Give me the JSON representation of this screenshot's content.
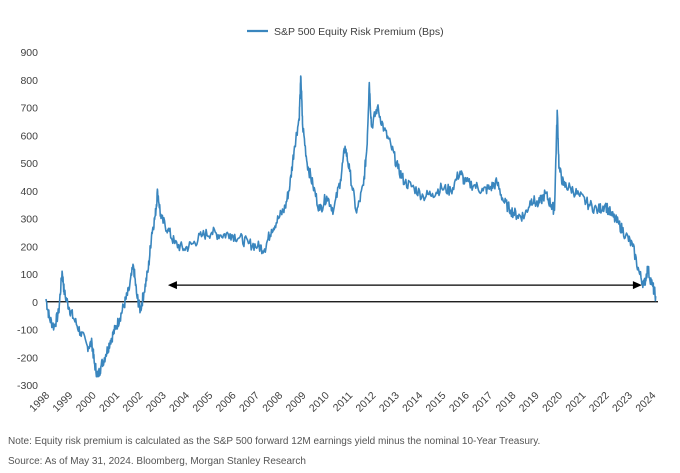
{
  "chart_data": {
    "type": "line",
    "title": "",
    "legend": [
      {
        "name": "S&P 500 Equity Risk Premium (Bps)",
        "color": "#3a86be"
      }
    ],
    "legend_position": "top-center",
    "xlabel": "",
    "ylabel": "",
    "ylim": [
      -300,
      900
    ],
    "yticks": [
      900,
      800,
      700,
      600,
      500,
      400,
      300,
      200,
      100,
      0,
      -100,
      -200,
      -300
    ],
    "xlim": [
      1998.0,
      2024.6
    ],
    "xticks": [
      "1998",
      "1999",
      "2000",
      "2001",
      "2002",
      "2003",
      "2004",
      "2005",
      "2006",
      "2007",
      "2008",
      "2009",
      "2010",
      "2011",
      "2012",
      "2013",
      "2014",
      "2015",
      "2016",
      "2017",
      "2018",
      "2019",
      "2020",
      "2021",
      "2022",
      "2023",
      "2024"
    ],
    "reference_line": {
      "y": 0,
      "label": ""
    },
    "annotation_arrow": {
      "x_start": 2003.3,
      "x_end": 2023.9,
      "y": 60,
      "style": "double-headed"
    },
    "series": [
      {
        "name": "S&P 500 Equity Risk Premium (Bps)",
        "color": "#3a86be",
        "points": [
          [
            1998.0,
            10
          ],
          [
            1998.15,
            -60
          ],
          [
            1998.35,
            -90
          ],
          [
            1998.55,
            -40
          ],
          [
            1998.7,
            110
          ],
          [
            1998.8,
            30
          ],
          [
            1999.0,
            -20
          ],
          [
            1999.2,
            -60
          ],
          [
            1999.5,
            -110
          ],
          [
            1999.8,
            -160
          ],
          [
            2000.0,
            -150
          ],
          [
            2000.1,
            -220
          ],
          [
            2000.25,
            -270
          ],
          [
            2000.4,
            -230
          ],
          [
            2000.6,
            -190
          ],
          [
            2000.8,
            -140
          ],
          [
            2001.0,
            -100
          ],
          [
            2001.2,
            -60
          ],
          [
            2001.4,
            -10
          ],
          [
            2001.6,
            40
          ],
          [
            2001.8,
            130
          ],
          [
            2001.95,
            20
          ],
          [
            2002.1,
            -30
          ],
          [
            2002.25,
            30
          ],
          [
            2002.45,
            120
          ],
          [
            2002.6,
            250
          ],
          [
            2002.75,
            310
          ],
          [
            2002.85,
            400
          ],
          [
            2003.0,
            300
          ],
          [
            2003.3,
            260
          ],
          [
            2003.6,
            210
          ],
          [
            2004.0,
            190
          ],
          [
            2004.4,
            210
          ],
          [
            2004.8,
            240
          ],
          [
            2005.2,
            250
          ],
          [
            2005.6,
            240
          ],
          [
            2006.0,
            245
          ],
          [
            2006.4,
            230
          ],
          [
            2006.8,
            210
          ],
          [
            2007.2,
            200
          ],
          [
            2007.5,
            190
          ],
          [
            2007.8,
            260
          ],
          [
            2008.1,
            300
          ],
          [
            2008.4,
            340
          ],
          [
            2008.6,
            420
          ],
          [
            2008.8,
            560
          ],
          [
            2009.0,
            660
          ],
          [
            2009.08,
            810
          ],
          [
            2009.15,
            640
          ],
          [
            2009.35,
            500
          ],
          [
            2009.6,
            420
          ],
          [
            2009.9,
            330
          ],
          [
            2010.2,
            380
          ],
          [
            2010.5,
            330
          ],
          [
            2010.8,
            440
          ],
          [
            2011.0,
            560
          ],
          [
            2011.2,
            470
          ],
          [
            2011.5,
            320
          ],
          [
            2011.8,
            420
          ],
          [
            2011.95,
            560
          ],
          [
            2012.05,
            790
          ],
          [
            2012.15,
            630
          ],
          [
            2012.4,
            700
          ],
          [
            2012.7,
            620
          ],
          [
            2013.0,
            560
          ],
          [
            2013.3,
            480
          ],
          [
            2013.6,
            430
          ],
          [
            2014.0,
            410
          ],
          [
            2014.4,
            380
          ],
          [
            2014.8,
            390
          ],
          [
            2015.2,
            410
          ],
          [
            2015.6,
            400
          ],
          [
            2016.0,
            470
          ],
          [
            2016.2,
            430
          ],
          [
            2016.6,
            420
          ],
          [
            2017.0,
            400
          ],
          [
            2017.3,
            410
          ],
          [
            2017.6,
            430
          ],
          [
            2017.9,
            360
          ],
          [
            2018.2,
            330
          ],
          [
            2018.5,
            310
          ],
          [
            2018.8,
            310
          ],
          [
            2019.1,
            370
          ],
          [
            2019.4,
            350
          ],
          [
            2019.7,
            390
          ],
          [
            2019.95,
            350
          ],
          [
            2020.1,
            330
          ],
          [
            2020.22,
            690
          ],
          [
            2020.3,
            480
          ],
          [
            2020.5,
            420
          ],
          [
            2020.8,
            410
          ],
          [
            2021.2,
            380
          ],
          [
            2021.6,
            350
          ],
          [
            2022.0,
            330
          ],
          [
            2022.3,
            350
          ],
          [
            2022.6,
            310
          ],
          [
            2022.9,
            280
          ],
          [
            2023.2,
            240
          ],
          [
            2023.5,
            200
          ],
          [
            2023.8,
            100
          ],
          [
            2024.0,
            60
          ],
          [
            2024.15,
            120
          ],
          [
            2024.35,
            60
          ],
          [
            2024.5,
            20
          ]
        ]
      }
    ]
  },
  "footnotes": {
    "note": "Note: Equity risk premium is calculated as the S&P 500 forward 12M earnings yield minus the nominal 10-Year Treasury.",
    "source": "Source: As of May 31, 2024. Bloomberg, Morgan Stanley Research"
  }
}
